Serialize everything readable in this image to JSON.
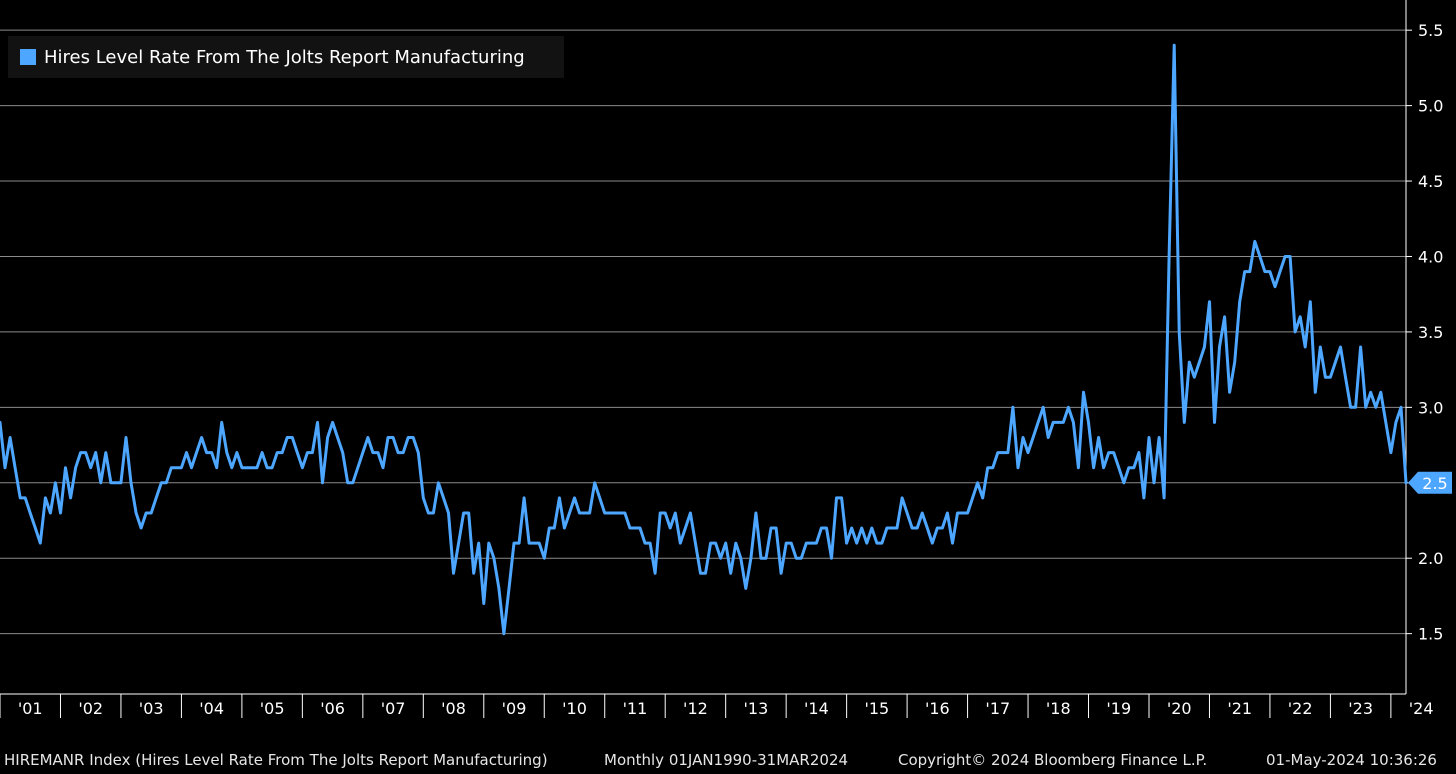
{
  "colors": {
    "line": "#4da6ff",
    "grid": "#8a8a8a",
    "background": "#000000",
    "axis": "#ffffff"
  },
  "legend": {
    "label": "Hires Level Rate From The Jolts Report Manufacturing"
  },
  "footer": {
    "description": "HIREMANR Index (Hires Level Rate From The Jolts Report Manufacturing)",
    "range": "Monthly 01JAN1990-31MAR2024",
    "copyright": "Copyright© 2024 Bloomberg Finance L.P.",
    "timestamp": "01-May-2024 10:36:26"
  },
  "chart_data": {
    "type": "line",
    "title": "",
    "xlabel": "",
    "ylabel": "",
    "grid": true,
    "legend_position": "top-left",
    "ylim": [
      1.1,
      5.7
    ],
    "xlim": [
      "2001-01",
      "2024-04"
    ],
    "yticks": [
      "1.5",
      "2.0",
      "2.5",
      "3.0",
      "3.5",
      "4.0",
      "4.5",
      "5.0",
      "5.5"
    ],
    "xticks": [
      {
        "date": "2001-01",
        "label": "'01"
      },
      {
        "date": "2002-01",
        "label": "'02"
      },
      {
        "date": "2003-01",
        "label": "'03"
      },
      {
        "date": "2004-01",
        "label": "'04"
      },
      {
        "date": "2005-01",
        "label": "'05"
      },
      {
        "date": "2006-01",
        "label": "'06"
      },
      {
        "date": "2007-01",
        "label": "'07"
      },
      {
        "date": "2008-01",
        "label": "'08"
      },
      {
        "date": "2009-01",
        "label": "'09"
      },
      {
        "date": "2010-01",
        "label": "'10"
      },
      {
        "date": "2011-01",
        "label": "'11"
      },
      {
        "date": "2012-01",
        "label": "'12"
      },
      {
        "date": "2013-01",
        "label": "'13"
      },
      {
        "date": "2014-01",
        "label": "'14"
      },
      {
        "date": "2015-01",
        "label": "'15"
      },
      {
        "date": "2016-01",
        "label": "'16"
      },
      {
        "date": "2017-01",
        "label": "'17"
      },
      {
        "date": "2018-01",
        "label": "'18"
      },
      {
        "date": "2019-01",
        "label": "'19"
      },
      {
        "date": "2020-01",
        "label": "'20"
      },
      {
        "date": "2021-01",
        "label": "'21"
      },
      {
        "date": "2022-01",
        "label": "'22"
      },
      {
        "date": "2023-01",
        "label": "'23"
      },
      {
        "date": "2024-01",
        "label": "'24"
      }
    ],
    "last_value_label": "2.5",
    "series": [
      {
        "name": "Hires Level Rate From The Jolts Report Manufacturing",
        "start": "2000-12",
        "values": [
          2.9,
          2.9,
          2.6,
          2.8,
          2.6,
          2.4,
          2.4,
          2.3,
          2.2,
          2.1,
          2.4,
          2.3,
          2.5,
          2.3,
          2.6,
          2.4,
          2.6,
          2.7,
          2.7,
          2.6,
          2.7,
          2.5,
          2.7,
          2.5,
          2.5,
          2.5,
          2.8,
          2.5,
          2.3,
          2.2,
          2.3,
          2.3,
          2.4,
          2.5,
          2.5,
          2.6,
          2.6,
          2.6,
          2.7,
          2.6,
          2.7,
          2.8,
          2.7,
          2.7,
          2.6,
          2.9,
          2.7,
          2.6,
          2.7,
          2.6,
          2.6,
          2.6,
          2.6,
          2.7,
          2.6,
          2.6,
          2.7,
          2.7,
          2.8,
          2.8,
          2.7,
          2.6,
          2.7,
          2.7,
          2.9,
          2.5,
          2.8,
          2.9,
          2.8,
          2.7,
          2.5,
          2.5,
          2.6,
          2.7,
          2.8,
          2.7,
          2.7,
          2.6,
          2.8,
          2.8,
          2.7,
          2.7,
          2.8,
          2.8,
          2.7,
          2.4,
          2.3,
          2.3,
          2.5,
          2.4,
          2.3,
          1.9,
          2.1,
          2.3,
          2.3,
          1.9,
          2.1,
          1.7,
          2.1,
          2.0,
          1.8,
          1.5,
          1.8,
          2.1,
          2.1,
          2.4,
          2.1,
          2.1,
          2.1,
          2.0,
          2.2,
          2.2,
          2.4,
          2.2,
          2.3,
          2.4,
          2.3,
          2.3,
          2.3,
          2.5,
          2.4,
          2.3,
          2.3,
          2.3,
          2.3,
          2.3,
          2.2,
          2.2,
          2.2,
          2.1,
          2.1,
          1.9,
          2.3,
          2.3,
          2.2,
          2.3,
          2.1,
          2.2,
          2.3,
          2.1,
          1.9,
          1.9,
          2.1,
          2.1,
          2.0,
          2.1,
          1.9,
          2.1,
          2.0,
          1.8,
          2.0,
          2.3,
          2.0,
          2.0,
          2.2,
          2.2,
          1.9,
          2.1,
          2.1,
          2.0,
          2.0,
          2.1,
          2.1,
          2.1,
          2.2,
          2.2,
          2.0,
          2.4,
          2.4,
          2.1,
          2.2,
          2.1,
          2.2,
          2.1,
          2.2,
          2.1,
          2.1,
          2.2,
          2.2,
          2.2,
          2.4,
          2.3,
          2.2,
          2.2,
          2.3,
          2.2,
          2.1,
          2.2,
          2.2,
          2.3,
          2.1,
          2.3,
          2.3,
          2.3,
          2.4,
          2.5,
          2.4,
          2.6,
          2.6,
          2.7,
          2.7,
          2.7,
          3.0,
          2.6,
          2.8,
          2.7,
          2.8,
          2.9,
          3.0,
          2.8,
          2.9,
          2.9,
          2.9,
          3.0,
          2.9,
          2.6,
          3.1,
          2.9,
          2.6,
          2.8,
          2.6,
          2.7,
          2.7,
          2.6,
          2.5,
          2.6,
          2.6,
          2.7,
          2.4,
          2.8,
          2.5,
          2.8,
          2.4,
          4.0,
          5.4,
          3.5,
          2.9,
          3.3,
          3.2,
          3.3,
          3.4,
          3.7,
          2.9,
          3.4,
          3.6,
          3.1,
          3.3,
          3.7,
          3.9,
          3.9,
          4.1,
          4.0,
          3.9,
          3.9,
          3.8,
          3.9,
          4.0,
          4.0,
          3.5,
          3.6,
          3.4,
          3.7,
          3.1,
          3.4,
          3.2,
          3.2,
          3.3,
          3.4,
          3.2,
          3.0,
          3.0,
          3.4,
          3.0,
          3.1,
          3.0,
          3.1,
          2.9,
          2.7,
          2.9,
          3.0,
          2.5
        ]
      }
    ]
  }
}
